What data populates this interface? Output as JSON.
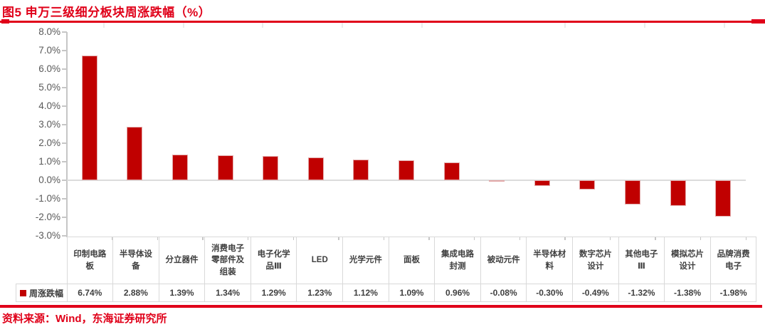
{
  "title": "图5  申万三级细分板块周涨跌幅（%）",
  "source_note": "资料来源：Wind，东海证券研究所",
  "legend": {
    "label": "周涨跌幅"
  },
  "colors": {
    "accent_red": "#e00019",
    "bar_red": "#c00000",
    "axis_gray": "#c6c6c6",
    "grid_gray": "#dcdcdc",
    "axis_text_gray": "#595959",
    "table_text_gray": "#3f3f3f",
    "table_border_gray": "#d9d9d9"
  },
  "chart_data": {
    "type": "bar",
    "title": "申万三级细分板块周涨跌幅（%）",
    "series_name": "周涨跌幅",
    "categories": [
      "印制电路板",
      "半导体设备",
      "分立器件",
      "消费电子零部件及组装",
      "电子化学品Ⅲ",
      "LED",
      "光学元件",
      "面板",
      "集成电路封测",
      "被动元件",
      "半导体材料",
      "数字芯片设计",
      "其他电子Ⅲ",
      "模拟芯片设计",
      "品牌消费电子"
    ],
    "values": [
      6.74,
      2.88,
      1.39,
      1.34,
      1.29,
      1.23,
      1.12,
      1.09,
      0.96,
      -0.08,
      -0.3,
      -0.49,
      -1.32,
      -1.38,
      -1.98
    ],
    "value_labels": [
      "6.74%",
      "2.88%",
      "1.39%",
      "1.34%",
      "1.29%",
      "1.23%",
      "1.12%",
      "1.09%",
      "0.96%",
      "-0.08%",
      "-0.30%",
      "-0.49%",
      "-1.32%",
      "-1.38%",
      "-1.98%"
    ],
    "ylim": [
      -3.0,
      8.0
    ],
    "ytick_labels": [
      "8.0%",
      "7.0%",
      "6.0%",
      "5.0%",
      "4.0%",
      "3.0%",
      "2.0%",
      "1.0%",
      "0.0%",
      "-1.0%",
      "-2.0%",
      "-3.0%"
    ],
    "grid": "zero-line-only",
    "legend_position": "bottom-left-of-data-table"
  },
  "table": {
    "header_labels": [
      "印制电路\n板",
      "半导体设\n备",
      "分立器件",
      "消费电子\n零部件及\n组装",
      "电子化学\n品Ⅲ",
      "LED",
      "光学元件",
      "面板",
      "集成电路\n封测",
      "被动元件",
      "半导体材\n料",
      "数字芯片\n设计",
      "其他电子\nⅢ",
      "模拟芯片\n设计",
      "品牌消费\n电子"
    ],
    "row_label": "周涨跌幅",
    "values": [
      "6.74%",
      "2.88%",
      "1.39%",
      "1.34%",
      "1.29%",
      "1.23%",
      "1.12%",
      "1.09%",
      "0.96%",
      "-0.08%",
      "-0.30%",
      "-0.49%",
      "-1.32%",
      "-1.38%",
      "-1.98%"
    ]
  }
}
